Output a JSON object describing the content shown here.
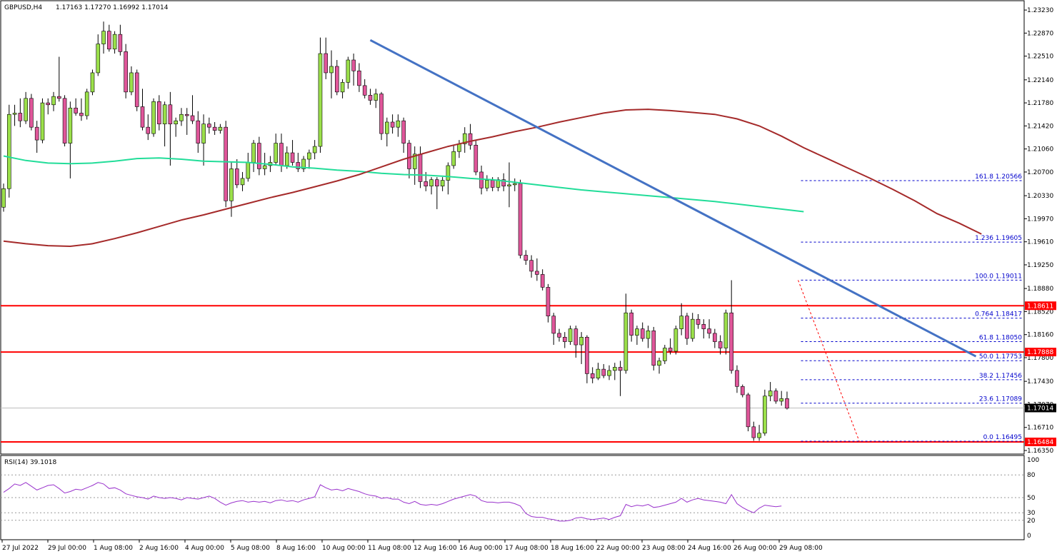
{
  "header": {
    "symbol": "GBPUSD,H4",
    "ohlc": "1.17163 1.17270 1.16992 1.17014"
  },
  "colors": {
    "bull_body": "#9be04a",
    "bear_body": "#e0569a",
    "wick": "#000000",
    "ma_fast": "#a52a2a",
    "ma_slow": "#22dd99",
    "trendline": "#4472c4",
    "hline": "#ff0000",
    "fib_line": "#0000cc",
    "fib_label": "#0000cc",
    "rsi_line": "#9932cc",
    "current_price_line": "#bdbdbd"
  },
  "chart_data": [
    {
      "type": "candlestick",
      "title": "GBPUSD,H4",
      "ylim": [
        1.1635,
        1.2332
      ],
      "y_ticks": [
        "1.23230",
        "1.22870",
        "1.22510",
        "1.22140",
        "1.21780",
        "1.21420",
        "1.21060",
        "1.20700",
        "1.20330",
        "1.19970",
        "1.19610",
        "1.19250",
        "1.18880",
        "1.18520",
        "1.18160",
        "1.17800",
        "1.17430",
        "1.17070",
        "1.16710",
        "1.16350"
      ],
      "x_labels": [
        "27 Jul 2022",
        "29 Jul 00:00",
        "1 Aug 08:00",
        "2 Aug 16:00",
        "4 Aug 00:00",
        "5 Aug 08:00",
        "8 Aug 16:00",
        "10 Aug 00:00",
        "11 Aug 08:00",
        "12 Aug 16:00",
        "16 Aug 00:00",
        "17 Aug 08:00",
        "18 Aug 16:00",
        "22 Aug 00:00",
        "23 Aug 08:00",
        "24 Aug 16:00",
        "26 Aug 00:00",
        "29 Aug 08:00"
      ],
      "candles": [
        [
          1.2015,
          1.2052,
          1.2008,
          1.2044
        ],
        [
          1.2044,
          1.2175,
          1.203,
          1.216
        ],
        [
          1.216,
          1.2175,
          1.2142,
          1.2162
        ],
        [
          1.2162,
          1.2185,
          1.214,
          1.215
        ],
        [
          1.215,
          1.2195,
          1.2145,
          1.2185
        ],
        [
          1.2185,
          1.2192,
          1.2135,
          1.214
        ],
        [
          1.214,
          1.215,
          1.21,
          1.212
        ],
        [
          1.212,
          1.2185,
          1.2115,
          1.2178
        ],
        [
          1.2178,
          1.2185,
          1.216,
          1.2175
        ],
        [
          1.2175,
          1.2195,
          1.2165,
          1.2188
        ],
        [
          1.2188,
          1.225,
          1.218,
          1.2185
        ],
        [
          1.2185,
          1.219,
          1.211,
          1.2115
        ],
        [
          1.2115,
          1.218,
          1.206,
          1.217
        ],
        [
          1.217,
          1.2185,
          1.2158,
          1.2162
        ],
        [
          1.2162,
          1.2185,
          1.215,
          1.2158
        ],
        [
          1.2158,
          1.22,
          1.2152,
          1.2195
        ],
        [
          1.2195,
          1.223,
          1.219,
          1.2225
        ],
        [
          1.2225,
          1.2285,
          1.222,
          1.227
        ],
        [
          1.227,
          1.2305,
          1.2255,
          1.229
        ],
        [
          1.229,
          1.23,
          1.2258,
          1.2262
        ],
        [
          1.2262,
          1.229,
          1.2255,
          1.2285
        ],
        [
          1.2285,
          1.23,
          1.2252,
          1.2258
        ],
        [
          1.2258,
          1.227,
          1.2185,
          1.2195
        ],
        [
          1.2195,
          1.2235,
          1.219,
          1.2225
        ],
        [
          1.2225,
          1.223,
          1.2165,
          1.2172
        ],
        [
          1.2172,
          1.22,
          1.2135,
          1.214
        ],
        [
          1.214,
          1.216,
          1.212,
          1.213
        ],
        [
          1.213,
          1.2185,
          1.2125,
          1.218
        ],
        [
          1.218,
          1.219,
          1.2135,
          1.2145
        ],
        [
          1.2145,
          1.218,
          1.211,
          1.2175
        ],
        [
          1.2175,
          1.2195,
          1.208,
          1.2145
        ],
        [
          1.2145,
          1.2155,
          1.2125,
          1.215
        ],
        [
          1.215,
          1.217,
          1.2142,
          1.216
        ],
        [
          1.216,
          1.217,
          1.2128,
          1.2158
        ],
        [
          1.2158,
          1.219,
          1.2145,
          1.215
        ],
        [
          1.215,
          1.2165,
          1.21,
          1.2115
        ],
        [
          1.2115,
          1.216,
          1.208,
          1.2145
        ],
        [
          1.2145,
          1.2155,
          1.213,
          1.214
        ],
        [
          1.214,
          1.2148,
          1.2128,
          1.2135
        ],
        [
          1.2135,
          1.2145,
          1.213,
          1.214
        ],
        [
          1.214,
          1.215,
          1.2015,
          1.2025
        ],
        [
          1.2025,
          1.2085,
          1.2,
          1.2075
        ],
        [
          1.2075,
          1.209,
          1.2045,
          1.205
        ],
        [
          1.205,
          1.207,
          1.204,
          1.206
        ],
        [
          1.206,
          1.21,
          1.2055,
          1.2085
        ],
        [
          1.2085,
          1.212,
          1.207,
          1.2115
        ],
        [
          1.2115,
          1.2125,
          1.2065,
          1.2075
        ],
        [
          1.2075,
          1.21,
          1.2065,
          1.208
        ],
        [
          1.208,
          1.2095,
          1.207,
          1.2085
        ],
        [
          1.2085,
          1.213,
          1.208,
          1.2115
        ],
        [
          1.2115,
          1.213,
          1.207,
          1.208
        ],
        [
          1.208,
          1.211,
          1.2075,
          1.21
        ],
        [
          1.21,
          1.212,
          1.208,
          1.2085
        ],
        [
          1.2085,
          1.21,
          1.207,
          1.2075
        ],
        [
          1.2075,
          1.2095,
          1.207,
          1.209
        ],
        [
          1.209,
          1.2105,
          1.2075,
          1.21
        ],
        [
          1.21,
          1.212,
          1.209,
          1.211
        ],
        [
          1.211,
          1.228,
          1.21,
          1.2255
        ],
        [
          1.2255,
          1.228,
          1.2215,
          1.2225
        ],
        [
          1.2225,
          1.226,
          1.2185,
          1.2235
        ],
        [
          1.2235,
          1.2245,
          1.219,
          1.2195
        ],
        [
          1.2195,
          1.2215,
          1.2185,
          1.221
        ],
        [
          1.221,
          1.225,
          1.22,
          1.2245
        ],
        [
          1.2245,
          1.2255,
          1.2205,
          1.2228
        ],
        [
          1.2228,
          1.224,
          1.2195,
          1.2205
        ],
        [
          1.2205,
          1.2215,
          1.2185,
          1.219
        ],
        [
          1.219,
          1.22,
          1.2175,
          1.2182
        ],
        [
          1.2182,
          1.22,
          1.217,
          1.2192
        ],
        [
          1.2192,
          1.2195,
          1.212,
          1.213
        ],
        [
          1.213,
          1.2155,
          1.211,
          1.2148
        ],
        [
          1.2148,
          1.216,
          1.213,
          1.214
        ],
        [
          1.214,
          1.216,
          1.2125,
          1.215
        ],
        [
          1.215,
          1.2155,
          1.21,
          1.2115
        ],
        [
          1.2115,
          1.212,
          1.206,
          1.2075
        ],
        [
          1.2075,
          1.211,
          1.205,
          1.2098
        ],
        [
          1.2098,
          1.211,
          1.2045,
          1.2055
        ],
        [
          1.2055,
          1.207,
          1.204,
          1.2048
        ],
        [
          1.2048,
          1.2062,
          1.2035,
          1.2058
        ],
        [
          1.2058,
          1.2062,
          1.2012,
          1.2048
        ],
        [
          1.2048,
          1.2062,
          1.204,
          1.2057
        ],
        [
          1.2057,
          1.2085,
          1.2035,
          1.208
        ],
        [
          1.208,
          1.2112,
          1.2075,
          1.2102
        ],
        [
          1.2102,
          1.212,
          1.2092,
          1.2114
        ],
        [
          1.2114,
          1.214,
          1.21,
          1.213
        ],
        [
          1.213,
          1.2145,
          1.2105,
          1.2112
        ],
        [
          1.2112,
          1.212,
          1.2065,
          1.207
        ],
        [
          1.207,
          1.208,
          1.2035,
          1.2045
        ],
        [
          1.2045,
          1.2065,
          1.204,
          1.2057
        ],
        [
          1.2057,
          1.2062,
          1.204,
          1.2046
        ],
        [
          1.2046,
          1.2062,
          1.204,
          1.2058
        ],
        [
          1.2058,
          1.2068,
          1.204,
          1.2048
        ],
        [
          1.2048,
          1.2085,
          1.2015,
          1.205
        ],
        [
          1.205,
          1.206,
          1.204,
          1.2052
        ],
        [
          1.2052,
          1.2058,
          1.1935,
          1.194
        ],
        [
          1.194,
          1.1948,
          1.1925,
          1.1932
        ],
        [
          1.1932,
          1.194,
          1.1905,
          1.1915
        ],
        [
          1.1915,
          1.1935,
          1.19,
          1.191
        ],
        [
          1.191,
          1.1918,
          1.1885,
          1.189
        ],
        [
          1.189,
          1.1895,
          1.1835,
          1.1845
        ],
        [
          1.1845,
          1.185,
          1.18,
          1.1818
        ],
        [
          1.1818,
          1.1825,
          1.1805,
          1.1812
        ],
        [
          1.1812,
          1.182,
          1.1795,
          1.1805
        ],
        [
          1.1805,
          1.183,
          1.18,
          1.1825
        ],
        [
          1.1825,
          1.183,
          1.178,
          1.18
        ],
        [
          1.18,
          1.182,
          1.177,
          1.1812
        ],
        [
          1.1812,
          1.1815,
          1.174,
          1.1755
        ],
        [
          1.1755,
          1.1765,
          1.174,
          1.1748
        ],
        [
          1.1748,
          1.1772,
          1.1745,
          1.1762
        ],
        [
          1.1762,
          1.177,
          1.1748,
          1.1752
        ],
        [
          1.1752,
          1.1768,
          1.1745,
          1.176
        ],
        [
          1.176,
          1.1772,
          1.1745,
          1.1765
        ],
        [
          1.1765,
          1.1775,
          1.172,
          1.176
        ],
        [
          1.176,
          1.188,
          1.1755,
          1.185
        ],
        [
          1.185,
          1.1855,
          1.1805,
          1.1815
        ],
        [
          1.1815,
          1.183,
          1.18,
          1.1825
        ],
        [
          1.1825,
          1.1835,
          1.1805,
          1.181
        ],
        [
          1.181,
          1.183,
          1.1795,
          1.1822
        ],
        [
          1.1822,
          1.1828,
          1.176,
          1.1768
        ],
        [
          1.1768,
          1.178,
          1.1755,
          1.1775
        ],
        [
          1.1775,
          1.18,
          1.177,
          1.1795
        ],
        [
          1.1795,
          1.181,
          1.1785,
          1.179
        ],
        [
          1.179,
          1.183,
          1.1785,
          1.1825
        ],
        [
          1.1825,
          1.1865,
          1.1815,
          1.1845
        ],
        [
          1.1845,
          1.185,
          1.18,
          1.181
        ],
        [
          1.181,
          1.185,
          1.1805,
          1.184
        ],
        [
          1.184,
          1.1848,
          1.1825,
          1.1832
        ],
        [
          1.1832,
          1.184,
          1.181,
          1.1825
        ],
        [
          1.1825,
          1.184,
          1.181,
          1.1818
        ],
        [
          1.1818,
          1.1825,
          1.1795,
          1.1805
        ],
        [
          1.1805,
          1.1815,
          1.1785,
          1.1795
        ],
        [
          1.1795,
          1.1855,
          1.1785,
          1.185
        ],
        [
          1.185,
          1.1901,
          1.1755,
          1.176
        ],
        [
          1.176,
          1.1768,
          1.1725,
          1.1735
        ],
        [
          1.1735,
          1.1738,
          1.1718,
          1.1722
        ],
        [
          1.1722,
          1.1725,
          1.1665,
          1.1672
        ],
        [
          1.1672,
          1.168,
          1.165,
          1.1655
        ],
        [
          1.1655,
          1.1675,
          1.165,
          1.1662
        ],
        [
          1.1662,
          1.173,
          1.1658,
          1.172
        ],
        [
          1.172,
          1.1742,
          1.1712,
          1.1728
        ],
        [
          1.1728,
          1.1732,
          1.1708,
          1.1712
        ],
        [
          1.1712,
          1.1728,
          1.1705,
          1.1716
        ],
        [
          1.1716,
          1.1727,
          1.1699,
          1.1701
        ]
      ],
      "ma_fast_values": [
        1.1962,
        1.1958,
        1.1955,
        1.1954,
        1.1958,
        1.1966,
        1.1975,
        1.1985,
        1.1995,
        1.2003,
        1.2012,
        1.2021,
        1.203,
        1.2038,
        1.2047,
        1.2056,
        1.2066,
        1.2078,
        1.209,
        1.21,
        1.211,
        1.2118,
        1.2125,
        1.2133,
        1.214,
        1.2148,
        1.2155,
        1.2162,
        1.2167,
        1.2168,
        1.2166,
        1.2163,
        1.216,
        1.2153,
        1.2142,
        1.2126,
        1.2108,
        1.2092,
        1.2076,
        1.206,
        1.2043,
        1.2025,
        1.2005,
        1.199,
        1.1973
      ],
      "ma_slow_values": [
        1.2095,
        1.2088,
        1.2084,
        1.2083,
        1.2084,
        1.2087,
        1.2091,
        1.2092,
        1.209,
        1.2087,
        1.2086,
        1.2085,
        1.2082,
        1.2078,
        1.2076,
        1.2073,
        1.2071,
        1.2068,
        1.2066,
        1.2065,
        1.2063,
        1.206,
        1.2058,
        1.2054,
        1.205,
        1.2046,
        1.2042,
        1.2039,
        1.2036,
        1.2033,
        1.203,
        1.2027,
        1.2024,
        1.202,
        1.2016,
        1.2012,
        1.2008
      ],
      "trendline": {
        "from_candle": 66,
        "from_price": 1.2276,
        "to_candle": 175,
        "to_price": 1.1782
      },
      "horizontal_levels": [
        "1.18611",
        "1.17888",
        "1.16484"
      ],
      "current_price": "1.17014",
      "fibonacci": {
        "from_candle": 143,
        "high": 1.19011,
        "low": 1.16495,
        "levels": [
          {
            "label": "161.8 1.20566",
            "price": 1.20566
          },
          {
            "label": "1.236 1.19605",
            "price": 1.19605
          },
          {
            "label": "100.0 1.19011",
            "price": 1.19011
          },
          {
            "label": "0.764 1.18417",
            "price": 1.18417
          },
          {
            "label": "61.8 1.18050",
            "price": 1.1805
          },
          {
            "label": "50.0 1.17753",
            "price": 1.17753
          },
          {
            "label": "38.2 1.17456",
            "price": 1.17456
          },
          {
            "label": "23.6 1.17089",
            "price": 1.17089
          },
          {
            "label": "0.0 1.16495",
            "price": 1.16495
          }
        ]
      }
    },
    {
      "type": "line",
      "title": "RSI(14) 39.1018",
      "ylim": [
        0,
        100
      ],
      "y_ticks": [
        "100",
        "80",
        "50",
        "30",
        "20",
        "0"
      ],
      "guide_levels": [
        80,
        50,
        30,
        20
      ],
      "values": [
        57,
        62,
        68,
        66,
        70,
        65,
        60,
        63,
        66,
        67,
        62,
        56,
        58,
        61,
        60,
        63,
        66,
        70,
        68,
        62,
        63,
        60,
        55,
        53,
        51,
        50,
        48,
        52,
        50,
        49,
        50,
        49,
        47,
        50,
        49,
        48,
        50,
        52,
        49,
        44,
        40,
        43,
        45,
        46,
        44,
        45,
        44,
        45,
        43,
        46,
        47,
        45,
        46,
        44,
        47,
        49,
        51,
        67,
        63,
        60,
        61,
        59,
        62,
        60,
        58,
        55,
        53,
        52,
        49,
        50,
        48,
        48,
        44,
        42,
        45,
        41,
        40,
        41,
        40,
        42,
        45,
        48,
        50,
        52,
        54,
        52,
        46,
        44,
        44,
        43,
        44,
        44,
        42,
        39,
        29,
        25,
        24,
        24,
        22,
        21,
        19,
        19,
        20,
        23,
        24,
        22,
        21,
        22,
        23,
        21,
        24,
        26,
        41,
        38,
        40,
        39,
        41,
        37,
        38,
        40,
        42,
        44,
        49,
        44,
        47,
        49,
        47,
        46,
        45,
        44,
        42,
        54,
        42,
        37,
        33,
        30,
        36,
        40,
        39,
        38,
        39
      ]
    }
  ]
}
